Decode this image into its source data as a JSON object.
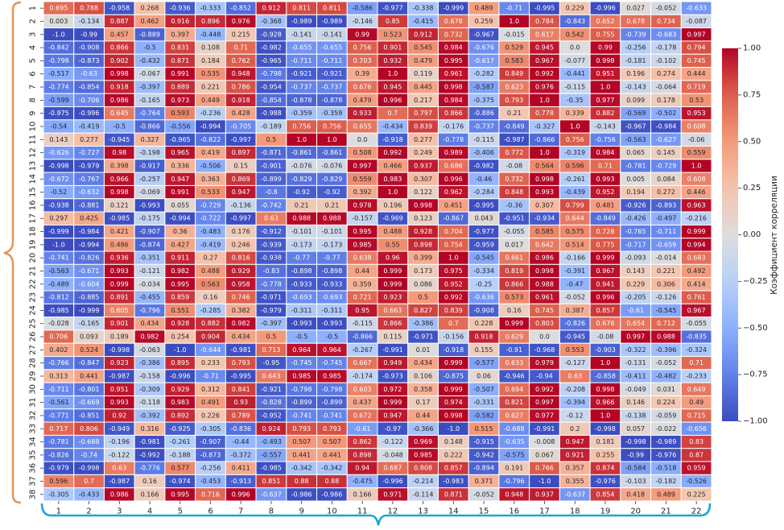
{
  "chart_data": {
    "type": "heatmap",
    "title": "",
    "colorbar_label": "Коэффициент корреляции",
    "vmin": -1.0,
    "vmax": 1.0,
    "colormap": "coolwarm",
    "colorbar_ticks": [
      1.0,
      0.75,
      0.5,
      0.25,
      0.0,
      -0.25,
      -0.5,
      -0.75,
      -1.0
    ],
    "colorbar_tick_labels": [
      "1.00",
      "0.75",
      "0.50",
      "0.25",
      "0.00",
      "−0.25",
      "−0.50",
      "−0.75",
      "−1.00"
    ],
    "x_labels": [
      "1",
      "2",
      "3",
      "4",
      "5",
      "6",
      "7",
      "8",
      "9",
      "10",
      "11",
      "12",
      "13",
      "14",
      "15",
      "16",
      "17",
      "18",
      "19",
      "20",
      "21",
      "22"
    ],
    "y_labels": [
      "1",
      "2",
      "3",
      "4",
      "5",
      "6",
      "7",
      "8",
      "9",
      "10",
      "11",
      "12",
      "13",
      "14",
      "15",
      "16",
      "17",
      "18",
      "19",
      "20",
      "21",
      "22",
      "23",
      "24",
      "25",
      "26",
      "27",
      "28",
      "29",
      "30",
      "31",
      "32",
      "33",
      "34",
      "35",
      "36",
      "37",
      "38"
    ],
    "values": [
      [
        0.695,
        0.788,
        -0.958,
        0.268,
        -0.936,
        -0.333,
        -0.852,
        0.912,
        0.811,
        0.811,
        -0.586,
        -0.977,
        -0.338,
        -0.999,
        0.489,
        -0.71,
        -0.995,
        0.229,
        -0.996,
        0.027,
        -0.052,
        -0.633
      ],
      [
        0.003,
        -0.134,
        0.887,
        0.462,
        0.916,
        0.896,
        0.976,
        -0.368,
        -0.989,
        -0.989,
        -0.146,
        0.85,
        -0.415,
        0.678,
        0.259,
        1.0,
        0.784,
        -0.843,
        0.652,
        0.678,
        0.734,
        -0.087
      ],
      [
        -1.0,
        -0.99,
        0.457,
        -0.889,
        0.397,
        -0.448,
        0.215,
        -0.928,
        -0.141,
        -0.141,
        0.99,
        0.523,
        0.912,
        0.732,
        -0.967,
        -0.015,
        0.617,
        0.542,
        0.755,
        -0.739,
        -0.683,
        0.997
      ],
      [
        -0.842,
        -0.908,
        0.866,
        -0.5,
        0.831,
        0.108,
        0.71,
        -0.982,
        -0.655,
        -0.655,
        0.756,
        0.901,
        0.545,
        0.984,
        -0.676,
        0.529,
        0.945,
        0.0,
        0.99,
        -0.256,
        -0.178,
        0.794
      ],
      [
        -0.798,
        -0.873,
        0.902,
        -0.432,
        0.871,
        0.184,
        0.762,
        -0.965,
        -0.711,
        -0.711,
        0.703,
        0.932,
        0.479,
        0.995,
        -0.617,
        0.583,
        0.967,
        -0.077,
        0.998,
        -0.181,
        -0.102,
        0.745
      ],
      [
        -0.517,
        -0.63,
        0.998,
        -0.067,
        0.991,
        0.535,
        0.948,
        -0.798,
        -0.921,
        -0.921,
        0.39,
        1.0,
        0.119,
        0.961,
        -0.282,
        0.849,
        0.992,
        -0.441,
        0.951,
        0.196,
        0.274,
        0.444
      ],
      [
        -0.774,
        -0.854,
        0.918,
        -0.397,
        0.889,
        0.221,
        0.786,
        -0.954,
        -0.737,
        -0.737,
        0.676,
        0.945,
        0.445,
        0.998,
        -0.587,
        0.623,
        0.976,
        -0.115,
        1.0,
        -0.143,
        -0.064,
        0.719
      ],
      [
        -0.599,
        -0.706,
        0.986,
        -0.165,
        0.973,
        0.449,
        0.918,
        -0.854,
        -0.878,
        -0.878,
        0.479,
        0.996,
        0.217,
        0.984,
        -0.375,
        0.793,
        1.0,
        -0.35,
        0.977,
        0.099,
        0.178,
        0.53
      ],
      [
        -0.975,
        -0.996,
        0.645,
        -0.764,
        0.593,
        -0.236,
        0.428,
        -0.988,
        -0.359,
        -0.359,
        0.933,
        0.7,
        0.797,
        0.866,
        -0.886,
        0.21,
        0.778,
        0.339,
        0.882,
        -0.569,
        -0.502,
        0.953
      ],
      [
        -0.54,
        -0.419,
        -0.5,
        -0.866,
        -0.556,
        -0.994,
        -0.705,
        -0.189,
        0.756,
        0.756,
        0.655,
        -0.434,
        0.839,
        -0.176,
        -0.737,
        -0.849,
        -0.327,
        1.0,
        -0.143,
        -0.967,
        -0.984,
        0.608
      ],
      [
        0.143,
        0.277,
        -0.945,
        0.327,
        -0.965,
        -0.822,
        -0.997,
        0.5,
        1.0,
        1.0,
        0.0,
        -0.918,
        0.277,
        -0.778,
        -0.115,
        -0.987,
        -0.866,
        0.756,
        -0.756,
        -0.563,
        -0.627,
        -0.06
      ],
      [
        -0.626,
        -0.727,
        0.98,
        -0.198,
        0.965,
        0.419,
        0.897,
        -0.871,
        -0.861,
        -0.861,
        0.508,
        0.992,
        0.249,
        0.989,
        -0.406,
        0.772,
        1.0,
        -0.319,
        0.984,
        0.065,
        0.145,
        0.559
      ],
      [
        -0.998,
        -0.979,
        0.398,
        -0.917,
        0.336,
        -0.506,
        0.15,
        -0.901,
        -0.076,
        -0.076,
        0.997,
        0.466,
        0.937,
        0.686,
        -0.982,
        -0.08,
        0.564,
        0.596,
        0.71,
        -0.781,
        -0.729,
        1.0
      ],
      [
        -0.672,
        -0.767,
        0.966,
        -0.257,
        0.947,
        0.363,
        0.869,
        -0.899,
        -0.829,
        -0.829,
        0.559,
        0.983,
        0.307,
        0.996,
        -0.46,
        0.732,
        0.998,
        -0.261,
        0.993,
        0.005,
        0.084,
        0.608
      ],
      [
        -0.52,
        -0.632,
        0.998,
        -0.069,
        0.991,
        0.533,
        0.947,
        -0.8,
        -0.92,
        -0.92,
        0.392,
        1.0,
        0.122,
        0.962,
        -0.284,
        0.848,
        0.993,
        -0.439,
        0.952,
        0.194,
        0.272,
        0.446
      ],
      [
        -0.938,
        -0.881,
        0.121,
        -0.993,
        0.055,
        -0.729,
        -0.136,
        -0.742,
        0.21,
        0.21,
        0.978,
        0.196,
        0.998,
        0.451,
        -0.995,
        -0.36,
        0.307,
        0.799,
        0.481,
        -0.926,
        -0.893,
        0.963
      ],
      [
        0.297,
        0.425,
        -0.985,
        -0.175,
        -0.994,
        -0.722,
        -0.997,
        0.63,
        0.988,
        0.988,
        -0.157,
        -0.969,
        0.123,
        -0.867,
        0.043,
        -0.951,
        -0.934,
        0.644,
        -0.849,
        -0.426,
        -0.497,
        -0.216
      ],
      [
        -0.999,
        -0.984,
        0.421,
        -0.907,
        0.36,
        -0.483,
        0.176,
        -0.912,
        -0.101,
        -0.101,
        0.995,
        0.488,
        0.928,
        0.704,
        -0.977,
        -0.055,
        0.585,
        0.575,
        0.728,
        -0.765,
        -0.711,
        0.999
      ],
      [
        -1.0,
        -0.994,
        0.486,
        -0.874,
        0.427,
        -0.419,
        0.246,
        -0.939,
        -0.173,
        -0.173,
        0.985,
        0.55,
        0.898,
        0.754,
        -0.959,
        0.017,
        0.642,
        0.514,
        0.775,
        -0.717,
        -0.659,
        0.994
      ],
      [
        -0.741,
        -0.826,
        0.936,
        -0.351,
        0.911,
        0.27,
        0.816,
        -0.938,
        -0.77,
        -0.77,
        0.638,
        0.96,
        0.399,
        1.0,
        -0.545,
        0.661,
        0.986,
        -0.166,
        0.999,
        -0.093,
        -0.014,
        0.683
      ],
      [
        -0.563,
        -0.671,
        0.993,
        -0.121,
        0.982,
        0.488,
        0.929,
        -0.83,
        -0.898,
        -0.898,
        0.44,
        0.999,
        0.173,
        0.975,
        -0.334,
        0.819,
        0.998,
        -0.391,
        0.967,
        0.143,
        0.221,
        0.492
      ],
      [
        -0.489,
        -0.604,
        0.999,
        -0.034,
        0.995,
        0.563,
        0.958,
        -0.778,
        -0.933,
        -0.933,
        0.359,
        0.999,
        0.086,
        0.952,
        -0.25,
        0.866,
        0.988,
        -0.47,
        0.941,
        0.229,
        0.306,
        0.414
      ],
      [
        -0.812,
        -0.885,
        0.891,
        -0.455,
        0.859,
        0.16,
        0.746,
        -0.971,
        -0.693,
        -0.693,
        0.721,
        0.923,
        0.5,
        0.992,
        -0.636,
        0.573,
        0.961,
        -0.052,
        0.996,
        -0.205,
        -0.126,
        0.761
      ],
      [
        -0.985,
        -0.999,
        0.605,
        -0.796,
        0.551,
        -0.285,
        0.382,
        -0.979,
        -0.311,
        -0.311,
        0.95,
        0.663,
        0.827,
        0.839,
        -0.908,
        0.16,
        0.745,
        0.387,
        0.857,
        -0.61,
        -0.545,
        0.967
      ],
      [
        -0.028,
        -0.165,
        0.901,
        0.434,
        0.928,
        0.882,
        0.982,
        -0.397,
        -0.993,
        -0.993,
        -0.115,
        0.866,
        -0.386,
        0.7,
        0.228,
        0.999,
        0.803,
        -0.826,
        0.676,
        0.654,
        0.712,
        -0.055
      ],
      [
        0.706,
        0.093,
        0.189,
        0.982,
        0.254,
        0.904,
        0.434,
        0.5,
        -0.5,
        -0.5,
        -0.866,
        0.115,
        -0.971,
        -0.156,
        0.918,
        0.629,
        0.0,
        -0.945,
        -0.08,
        0.997,
        0.988,
        -0.835
      ],
      [
        0.402,
        0.524,
        -0.998,
        -0.063,
        -1.0,
        -0.644,
        -0.981,
        0.713,
        0.964,
        0.964,
        -0.267,
        -0.991,
        0.01,
        -0.918,
        0.155,
        -0.91,
        -0.968,
        0.553,
        -0.903,
        -0.322,
        -0.396,
        -0.324
      ],
      [
        -0.766,
        -0.847,
        0.923,
        -0.386,
        0.895,
        0.233,
        0.793,
        -0.95,
        -0.745,
        -0.745,
        0.667,
        0.949,
        0.434,
        0.999,
        -0.577,
        0.633,
        0.979,
        -0.127,
        1.0,
        -0.131,
        -0.052,
        0.71
      ],
      [
        0.313,
        0.441,
        -0.987,
        -0.158,
        -0.996,
        -0.71,
        -0.995,
        0.643,
        0.985,
        0.985,
        -0.174,
        -0.973,
        0.106,
        -0.875,
        0.06,
        -0.946,
        -0.94,
        0.63,
        -0.858,
        -0.411,
        -0.482,
        -0.233
      ],
      [
        -0.711,
        -0.801,
        0.951,
        -0.309,
        0.929,
        0.312,
        0.841,
        -0.921,
        -0.798,
        -0.798,
        0.603,
        0.972,
        0.358,
        0.999,
        -0.507,
        0.694,
        0.992,
        -0.208,
        0.998,
        -0.049,
        0.031,
        0.649
      ],
      [
        -0.561,
        -0.669,
        0.993,
        -0.118,
        0.983,
        0.491,
        0.93,
        -0.828,
        -0.899,
        -0.899,
        0.437,
        0.999,
        0.17,
        0.974,
        -0.331,
        0.821,
        0.997,
        -0.394,
        0.966,
        0.146,
        0.224,
        0.49
      ],
      [
        -0.771,
        -0.851,
        0.92,
        -0.392,
        0.892,
        0.226,
        0.789,
        -0.952,
        -0.741,
        -0.741,
        0.672,
        0.947,
        0.44,
        0.998,
        -0.582,
        0.627,
        0.977,
        -0.12,
        1.0,
        -0.138,
        -0.059,
        0.715
      ],
      [
        0.717,
        0.806,
        -0.949,
        0.316,
        -0.925,
        -0.305,
        -0.836,
        0.924,
        0.793,
        0.793,
        -0.61,
        -0.97,
        -0.366,
        -1.0,
        0.515,
        -0.688,
        -0.991,
        0.2,
        -0.998,
        0.057,
        -0.022,
        -0.656
      ],
      [
        -0.781,
        -0.688,
        -0.196,
        -0.981,
        -0.261,
        -0.907,
        -0.44,
        -0.493,
        0.507,
        0.507,
        0.862,
        -0.122,
        0.969,
        0.148,
        -0.915,
        -0.635,
        -0.008,
        0.947,
        0.181,
        -0.998,
        -0.989,
        0.83
      ],
      [
        -0.826,
        -0.74,
        -0.122,
        -0.992,
        -0.188,
        -0.873,
        -0.372,
        -0.557,
        0.441,
        0.441,
        0.898,
        -0.048,
        0.985,
        0.222,
        -0.942,
        -0.575,
        0.067,
        0.921,
        0.255,
        -0.99,
        -0.976,
        0.87
      ],
      [
        -0.979,
        -0.998,
        0.63,
        -0.776,
        0.577,
        -0.256,
        0.411,
        -0.985,
        -0.342,
        -0.342,
        0.94,
        0.687,
        0.808,
        0.857,
        -0.894,
        0.191,
        0.766,
        0.357,
        0.874,
        -0.584,
        -0.518,
        0.959
      ],
      [
        0.596,
        0.7,
        -0.987,
        0.16,
        -0.974,
        -0.453,
        -0.913,
        0.851,
        0.88,
        0.88,
        -0.475,
        -0.996,
        -0.214,
        -0.983,
        0.371,
        -0.796,
        -1.0,
        0.355,
        -0.976,
        -0.103,
        -0.182,
        -0.526
      ],
      [
        -0.305,
        -0.433,
        0.986,
        0.166,
        0.995,
        0.716,
        0.996,
        -0.637,
        -0.986,
        -0.986,
        0.166,
        0.971,
        -0.114,
        0.871,
        -0.052,
        0.948,
        0.937,
        -0.637,
        0.854,
        0.418,
        0.489,
        0.225
      ]
    ]
  }
}
